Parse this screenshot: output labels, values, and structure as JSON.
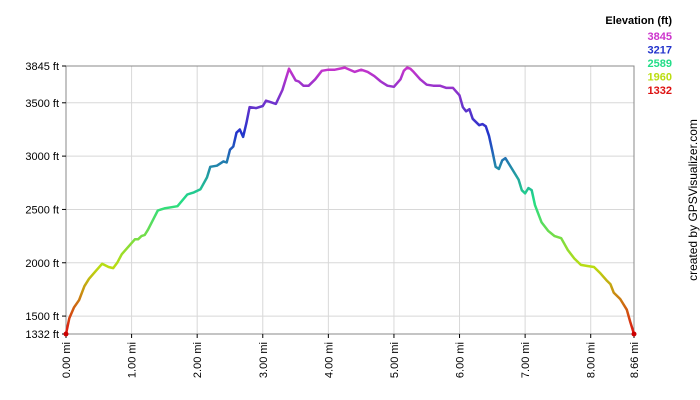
{
  "chart_data": {
    "type": "line",
    "title": "",
    "xlabel": "",
    "ylabel": "",
    "x_unit": "mi",
    "y_unit": "ft",
    "xlim": [
      0.0,
      8.66
    ],
    "ylim": [
      1332,
      3845
    ],
    "x_ticks": [
      "0.00 mi",
      "1.00 mi",
      "2.00 mi",
      "3.00 mi",
      "4.00 mi",
      "5.00 mi",
      "6.00 mi",
      "7.00 mi",
      "8.00 mi",
      "8.66 mi"
    ],
    "x_tick_values": [
      0.0,
      1.0,
      2.0,
      3.0,
      4.0,
      5.0,
      6.0,
      7.0,
      8.0,
      8.66
    ],
    "y_ticks": [
      "1332 ft",
      "1500 ft",
      "2000 ft",
      "2500 ft",
      "3000 ft",
      "3500 ft",
      "3845 ft"
    ],
    "y_tick_values": [
      1332,
      1500,
      2000,
      2500,
      3000,
      3500,
      3845
    ],
    "grid": true,
    "legend": {
      "title": "Elevation (ft)",
      "placement": "top-right",
      "entries": [
        {
          "label": "3845",
          "color": "#cc33cc"
        },
        {
          "label": "3217",
          "color": "#2233cc"
        },
        {
          "label": "2589",
          "color": "#22dd88"
        },
        {
          "label": "1960",
          "color": "#bbdd11"
        },
        {
          "label": "1332",
          "color": "#dd1111"
        }
      ]
    },
    "series": [
      {
        "x": [
          0.0,
          0.05,
          0.12,
          0.2,
          0.28,
          0.35,
          0.45,
          0.55,
          0.65,
          0.72,
          0.78,
          0.85,
          0.95,
          1.05,
          1.1,
          1.15,
          1.2,
          1.25,
          1.35,
          1.4,
          1.45,
          1.5,
          1.6,
          1.7,
          1.85,
          1.9,
          1.95,
          2.05,
          2.15,
          2.2,
          2.3,
          2.4,
          2.45,
          2.5,
          2.55,
          2.6,
          2.65,
          2.7,
          2.75,
          2.8,
          2.9,
          3.0,
          3.05,
          3.1,
          3.2,
          3.3,
          3.4,
          3.5,
          3.55,
          3.62,
          3.7,
          3.8,
          3.9,
          4.0,
          4.1,
          4.25,
          4.4,
          4.5,
          4.6,
          4.7,
          4.8,
          4.9,
          5.0,
          5.1,
          5.15,
          5.2,
          5.25,
          5.3,
          5.4,
          5.5,
          5.6,
          5.7,
          5.8,
          5.9,
          6.0,
          6.05,
          6.1,
          6.15,
          6.2,
          6.3,
          6.35,
          6.4,
          6.45,
          6.5,
          6.55,
          6.6,
          6.65,
          6.7,
          6.8,
          6.9,
          6.95,
          7.0,
          7.05,
          7.1,
          7.15,
          7.25,
          7.35,
          7.45,
          7.55,
          7.65,
          7.75,
          7.85,
          7.95,
          8.05,
          8.15,
          8.25,
          8.3,
          8.35,
          8.45,
          8.55,
          8.6,
          8.66
        ],
        "y": [
          1332,
          1480,
          1580,
          1650,
          1780,
          1850,
          1920,
          1990,
          1960,
          1950,
          2000,
          2080,
          2150,
          2220,
          2220,
          2250,
          2260,
          2310,
          2430,
          2490,
          2500,
          2510,
          2520,
          2530,
          2640,
          2650,
          2660,
          2690,
          2800,
          2900,
          2910,
          2950,
          2940,
          3060,
          3090,
          3220,
          3250,
          3180,
          3310,
          3460,
          3450,
          3470,
          3520,
          3510,
          3490,
          3620,
          3820,
          3710,
          3700,
          3660,
          3660,
          3720,
          3800,
          3810,
          3810,
          3830,
          3790,
          3810,
          3790,
          3750,
          3700,
          3660,
          3650,
          3720,
          3800,
          3830,
          3820,
          3790,
          3720,
          3670,
          3660,
          3660,
          3640,
          3640,
          3570,
          3460,
          3420,
          3440,
          3350,
          3290,
          3300,
          3280,
          3190,
          3050,
          2900,
          2880,
          2960,
          2980,
          2880,
          2780,
          2680,
          2650,
          2700,
          2680,
          2540,
          2380,
          2300,
          2250,
          2230,
          2120,
          2040,
          1980,
          1970,
          1960,
          1900,
          1830,
          1800,
          1720,
          1660,
          1560,
          1450,
          1332
        ]
      }
    ]
  },
  "credit": "created by GPSVisualizer.com"
}
